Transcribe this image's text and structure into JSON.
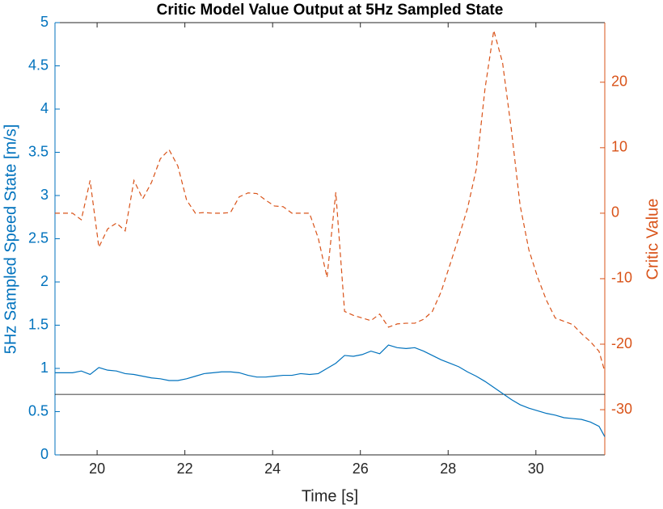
{
  "chart_data": {
    "type": "line",
    "title": "Critic Model Value Output at 5Hz Sampled State",
    "xlabel": "Time [s]",
    "ylabel": "5Hz Sampled Speed State [m/s]",
    "y2label": "Critic Value",
    "x": [
      19.04,
      19.24,
      19.44,
      19.64,
      19.84,
      20.04,
      20.24,
      20.44,
      20.64,
      20.84,
      21.04,
      21.24,
      21.44,
      21.64,
      21.84,
      22.04,
      22.24,
      22.44,
      22.64,
      22.84,
      23.04,
      23.24,
      23.44,
      23.64,
      23.84,
      24.04,
      24.24,
      24.44,
      24.64,
      24.84,
      25.04,
      25.24,
      25.44,
      25.64,
      25.84,
      26.04,
      26.24,
      26.44,
      26.64,
      26.84,
      27.04,
      27.24,
      27.44,
      27.64,
      27.84,
      28.04,
      28.24,
      28.44,
      28.64,
      28.84,
      29.04,
      29.24,
      29.44,
      29.64,
      29.84,
      30.04,
      30.24,
      30.44,
      30.64,
      30.84,
      31.04,
      31.24,
      31.44,
      31.57
    ],
    "series": [
      {
        "color": "#0072BD",
        "axis": "y",
        "dashed": false,
        "values": [
          0.95,
          0.95,
          0.95,
          0.97,
          0.93,
          1.01,
          0.98,
          0.97,
          0.94,
          0.93,
          0.91,
          0.89,
          0.88,
          0.86,
          0.86,
          0.88,
          0.91,
          0.94,
          0.95,
          0.96,
          0.96,
          0.95,
          0.92,
          0.9,
          0.9,
          0.91,
          0.92,
          0.92,
          0.94,
          0.93,
          0.94,
          1.0,
          1.06,
          1.15,
          1.14,
          1.16,
          1.2,
          1.17,
          1.27,
          1.24,
          1.23,
          1.24,
          1.2,
          1.15,
          1.1,
          1.06,
          1.02,
          0.96,
          0.91,
          0.85,
          0.78,
          0.71,
          0.64,
          0.58,
          0.54,
          0.51,
          0.48,
          0.46,
          0.43,
          0.42,
          0.41,
          0.38,
          0.33,
          0.21
        ]
      },
      {
        "color": "#D95319",
        "axis": "y2",
        "dashed": true,
        "values": [
          0,
          0,
          0,
          -1,
          5,
          -5.2,
          -2.4,
          -1.5,
          -2.7,
          5,
          2.2,
          4.7,
          8.3,
          9.7,
          7.2,
          2,
          0,
          0.1,
          0,
          0,
          0.1,
          2.5,
          3.1,
          3,
          2,
          1.1,
          1,
          0,
          0,
          0,
          -3.8,
          -9.8,
          3.2,
          -15,
          -15.6,
          -16,
          -16.4,
          -15.4,
          -17.4,
          -16.9,
          -16.8,
          -16.8,
          -16.2,
          -15,
          -12,
          -7.9,
          -3.7,
          0.7,
          6.7,
          19,
          27.9,
          23,
          12.8,
          1.2,
          -5.6,
          -9.8,
          -13.3,
          -16,
          -16.5,
          -17,
          -18.4,
          -19.6,
          -21.1,
          -24.2
        ]
      }
    ],
    "hline": {
      "value": 0.7,
      "color": "#000000"
    },
    "xlim": [
      19.04,
      31.57
    ],
    "xticks": [
      20,
      22,
      24,
      26,
      28,
      30
    ],
    "ylim": [
      0,
      5
    ],
    "yticks": [
      0,
      0.5,
      1,
      1.5,
      2,
      2.5,
      3,
      3.5,
      4,
      4.5,
      5
    ],
    "y2lim": [
      -36.9,
      29.1
    ],
    "y2ticks": [
      -30,
      -20,
      -10,
      0,
      10,
      20
    ],
    "grid": false
  }
}
